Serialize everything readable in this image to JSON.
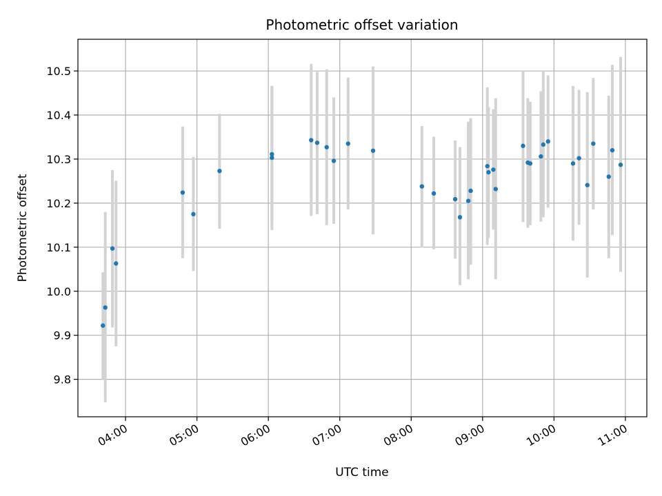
{
  "chart_data": {
    "type": "scatter",
    "title": "Photometric offset variation",
    "xlabel": "UTC time",
    "ylabel": "Photometric offset",
    "xlim": [
      "03:20",
      "11:18"
    ],
    "ylim": [
      9.715,
      10.572
    ],
    "x_ticks": [
      "04:00",
      "05:00",
      "06:00",
      "07:00",
      "08:00",
      "09:00",
      "10:00",
      "11:00"
    ],
    "y_ticks": [
      "9.8",
      "9.9",
      "10.0",
      "10.1",
      "10.2",
      "10.3",
      "10.4",
      "10.5"
    ],
    "grid": true,
    "legend": false,
    "colors": {
      "points": "#1f77b4",
      "errorbars": "#d3d3d3",
      "grid": "#b0b0b0"
    },
    "series": [
      {
        "points": [
          {
            "x": "03:41",
            "y": 9.922,
            "yerr_low": 9.8,
            "yerr_high": 10.043
          },
          {
            "x": "03:43",
            "y": 9.963,
            "yerr_low": 9.748,
            "yerr_high": 10.18
          },
          {
            "x": "03:49",
            "y": 10.097,
            "yerr_low": 9.918,
            "yerr_high": 10.275
          },
          {
            "x": "03:52",
            "y": 10.063,
            "yerr_low": 9.875,
            "yerr_high": 10.251
          },
          {
            "x": "04:48",
            "y": 10.224,
            "yerr_low": 10.075,
            "yerr_high": 10.374
          },
          {
            "x": "04:57",
            "y": 10.175,
            "yerr_low": 10.046,
            "yerr_high": 10.305
          },
          {
            "x": "05:19",
            "y": 10.273,
            "yerr_low": 10.142,
            "yerr_high": 10.403
          },
          {
            "x": "06:03",
            "y": 10.303,
            "yerr_low": 10.139,
            "yerr_high": 10.466
          },
          {
            "x": "06:03",
            "y": 10.311,
            "yerr_low": 10.156,
            "yerr_high": 10.465
          },
          {
            "x": "06:36",
            "y": 10.343,
            "yerr_low": 10.171,
            "yerr_high": 10.516
          },
          {
            "x": "06:41",
            "y": 10.337,
            "yerr_low": 10.175,
            "yerr_high": 10.498
          },
          {
            "x": "06:49",
            "y": 10.327,
            "yerr_low": 10.15,
            "yerr_high": 10.504
          },
          {
            "x": "06:55",
            "y": 10.296,
            "yerr_low": 10.153,
            "yerr_high": 10.44
          },
          {
            "x": "07:07",
            "y": 10.335,
            "yerr_low": 10.186,
            "yerr_high": 10.485
          },
          {
            "x": "07:28",
            "y": 10.319,
            "yerr_low": 10.129,
            "yerr_high": 10.51
          },
          {
            "x": "08:09",
            "y": 10.238,
            "yerr_low": 10.099,
            "yerr_high": 10.375
          },
          {
            "x": "08:19",
            "y": 10.222,
            "yerr_low": 10.095,
            "yerr_high": 10.351
          },
          {
            "x": "08:37",
            "y": 10.209,
            "yerr_low": 10.074,
            "yerr_high": 10.342
          },
          {
            "x": "08:41",
            "y": 10.168,
            "yerr_low": 10.014,
            "yerr_high": 10.327
          },
          {
            "x": "08:48",
            "y": 10.205,
            "yerr_low": 10.027,
            "yerr_high": 10.385
          },
          {
            "x": "08:50",
            "y": 10.228,
            "yerr_low": 10.06,
            "yerr_high": 10.393
          },
          {
            "x": "09:04",
            "y": 10.284,
            "yerr_low": 10.105,
            "yerr_high": 10.463
          },
          {
            "x": "09:05",
            "y": 10.27,
            "yerr_low": 10.121,
            "yerr_high": 10.418
          },
          {
            "x": "09:09",
            "y": 10.276,
            "yerr_low": 10.14,
            "yerr_high": 10.413
          },
          {
            "x": "09:11",
            "y": 10.232,
            "yerr_low": 10.027,
            "yerr_high": 10.438
          },
          {
            "x": "09:34",
            "y": 10.33,
            "yerr_low": 10.157,
            "yerr_high": 10.5
          },
          {
            "x": "09:38",
            "y": 10.292,
            "yerr_low": 10.144,
            "yerr_high": 10.438
          },
          {
            "x": "09:40",
            "y": 10.29,
            "yerr_low": 10.15,
            "yerr_high": 10.43
          },
          {
            "x": "09:49",
            "y": 10.306,
            "yerr_low": 10.158,
            "yerr_high": 10.454
          },
          {
            "x": "09:51",
            "y": 10.333,
            "yerr_low": 10.168,
            "yerr_high": 10.5
          },
          {
            "x": "09:55",
            "y": 10.34,
            "yerr_low": 10.19,
            "yerr_high": 10.49
          },
          {
            "x": "10:16",
            "y": 10.29,
            "yerr_low": 10.115,
            "yerr_high": 10.466
          },
          {
            "x": "10:21",
            "y": 10.302,
            "yerr_low": 10.151,
            "yerr_high": 10.457
          },
          {
            "x": "10:28",
            "y": 10.241,
            "yerr_low": 10.031,
            "yerr_high": 10.452
          },
          {
            "x": "10:33",
            "y": 10.335,
            "yerr_low": 10.186,
            "yerr_high": 10.484
          },
          {
            "x": "10:46",
            "y": 10.26,
            "yerr_low": 10.075,
            "yerr_high": 10.444
          },
          {
            "x": "10:49",
            "y": 10.32,
            "yerr_low": 10.127,
            "yerr_high": 10.514
          },
          {
            "x": "10:56",
            "y": 10.287,
            "yerr_low": 10.044,
            "yerr_high": 10.532
          }
        ]
      }
    ]
  }
}
